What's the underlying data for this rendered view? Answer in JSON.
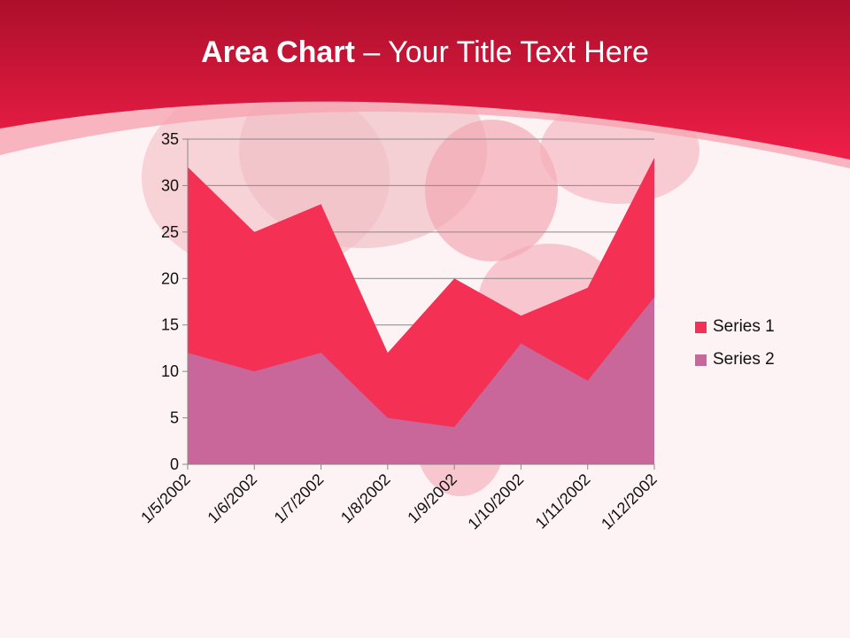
{
  "slide": {
    "title_bold": "Area Chart",
    "title_rest": " – Your Title Text Here"
  },
  "colors": {
    "header": "#e8193f",
    "background": "#fdf3f5"
  },
  "chart_data": {
    "type": "area",
    "categories": [
      "1/5/2002",
      "1/6/2002",
      "1/7/2002",
      "1/8/2002",
      "1/9/2002",
      "1/10/2002",
      "1/11/2002",
      "1/12/2002"
    ],
    "series": [
      {
        "name": "Series 1",
        "values": [
          32,
          25,
          28,
          12,
          20,
          16,
          19,
          33
        ],
        "color": "#f43054"
      },
      {
        "name": "Series 2",
        "values": [
          12,
          10,
          12,
          5,
          4,
          13,
          9,
          18
        ],
        "color": "#c9669a"
      }
    ],
    "ylim": [
      0,
      35
    ],
    "yticks": [
      0,
      5,
      10,
      15,
      20,
      25,
      30,
      35
    ],
    "grid": true,
    "legend": "right"
  }
}
